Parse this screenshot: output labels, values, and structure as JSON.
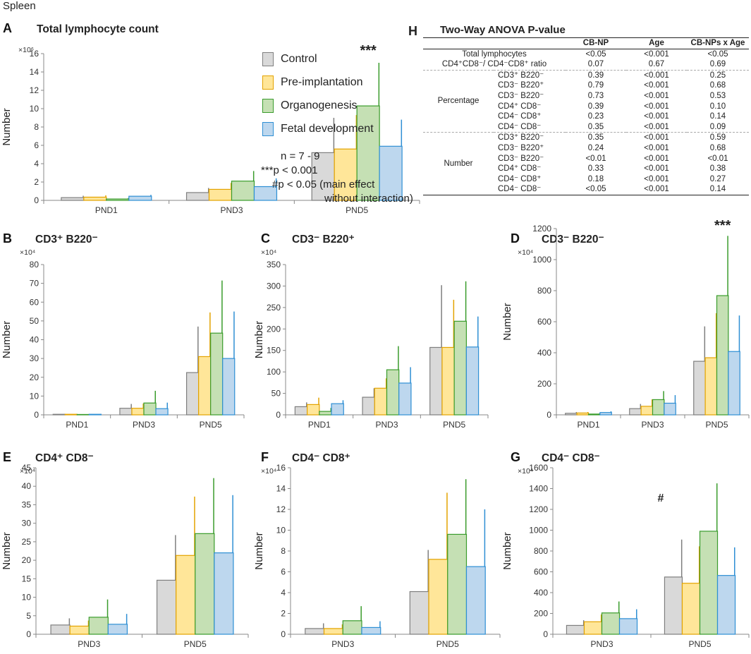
{
  "figure_label": "Spleen",
  "legend": {
    "items": [
      {
        "label": "Control",
        "fill": "#d9d9d9",
        "stroke": "#7f7f7f"
      },
      {
        "label": "Pre-implantation",
        "fill": "#ffe699",
        "stroke": "#e3a300"
      },
      {
        "label": "Organogenesis",
        "fill": "#c5e0b4",
        "stroke": "#3a9c2c"
      },
      {
        "label": "Fetal development",
        "fill": "#bdd7ee",
        "stroke": "#2e8fd4"
      }
    ],
    "notes": [
      "n = 7 - 9",
      "***p < 0.001",
      "#p < 0.05 (main effect",
      "without interaction)"
    ]
  },
  "chart_data": [
    {
      "id": "A",
      "panel_letter": "A",
      "type": "bar",
      "title": "Total lymphocyte count",
      "multiplier": "×10⁶",
      "ylabel": "Number",
      "categories": [
        "PND1",
        "PND3",
        "PND5"
      ],
      "ylim": [
        0,
        16
      ],
      "yticks": [
        0,
        2,
        4,
        6,
        8,
        10,
        12,
        14,
        16
      ],
      "series": [
        {
          "name": "Control",
          "values": [
            0.3,
            0.85,
            5.2
          ],
          "errors": [
            0.2,
            0.5,
            3.8
          ]
        },
        {
          "name": "Pre-implantation",
          "values": [
            0.35,
            1.2,
            5.6
          ],
          "errors": [
            0.2,
            0.7,
            3.7
          ]
        },
        {
          "name": "Organogenesis",
          "values": [
            0.15,
            2.1,
            10.3
          ],
          "errors": [
            0.1,
            1.1,
            4.7
          ]
        },
        {
          "name": "Fetal development",
          "values": [
            0.45,
            1.5,
            5.9
          ],
          "errors": [
            0.15,
            0.9,
            2.9
          ]
        }
      ],
      "annotation": {
        "text": "***",
        "category": "PND5"
      }
    },
    {
      "id": "B",
      "panel_letter": "B",
      "type": "bar",
      "title": "CD3⁺ B220⁻",
      "multiplier": "×10⁴",
      "ylabel": "Number",
      "categories": [
        "PND1",
        "PND3",
        "PND5"
      ],
      "ylim": [
        0,
        80
      ],
      "yticks": [
        0,
        10,
        20,
        30,
        40,
        50,
        60,
        70,
        80
      ],
      "series": [
        {
          "name": "Control",
          "values": [
            0.3,
            3.5,
            22.5
          ],
          "errors": [
            0.1,
            2.3,
            24.5
          ]
        },
        {
          "name": "Pre-implantation",
          "values": [
            0.3,
            3.5,
            31
          ],
          "errors": [
            0.1,
            2.5,
            23.5
          ]
        },
        {
          "name": "Organogenesis",
          "values": [
            0.2,
            6.3,
            43.5
          ],
          "errors": [
            0.1,
            6.5,
            28
          ]
        },
        {
          "name": "Fetal development",
          "values": [
            0.3,
            3.3,
            30
          ],
          "errors": [
            0.1,
            3.2,
            25
          ]
        }
      ]
    },
    {
      "id": "C",
      "panel_letter": "C",
      "type": "bar",
      "title": "CD3⁻ B220⁺",
      "multiplier": "×10⁴",
      "ylabel": "Number",
      "categories": [
        "PND1",
        "PND3",
        "PND5"
      ],
      "ylim": [
        0,
        350
      ],
      "yticks": [
        0,
        50,
        100,
        150,
        200,
        250,
        300,
        350
      ],
      "series": [
        {
          "name": "Control",
          "values": [
            19,
            41,
            157
          ],
          "errors": [
            10,
            21,
            145
          ]
        },
        {
          "name": "Pre-implantation",
          "values": [
            24,
            62,
            157
          ],
          "errors": [
            16,
            23,
            111
          ]
        },
        {
          "name": "Organogenesis",
          "values": [
            8,
            105,
            218
          ],
          "errors": [
            8,
            55,
            93
          ]
        },
        {
          "name": "Fetal development",
          "values": [
            26,
            74,
            158
          ],
          "errors": [
            8,
            37,
            71
          ]
        }
      ]
    },
    {
      "id": "D",
      "panel_letter": "D",
      "type": "bar",
      "title": "CD3⁻ B220⁻",
      "multiplier": "×10⁴",
      "ylabel": "Number",
      "categories": [
        "PND1",
        "PND3",
        "PND5"
      ],
      "ylim": [
        0,
        1200
      ],
      "yticks": [
        0,
        200,
        400,
        600,
        800,
        1000,
        1200
      ],
      "series": [
        {
          "name": "Control",
          "values": [
            10,
            40,
            345
          ],
          "errors": [
            8,
            30,
            225
          ]
        },
        {
          "name": "Pre-implantation",
          "values": [
            12,
            55,
            368
          ],
          "errors": [
            6,
            45,
            287
          ]
        },
        {
          "name": "Organogenesis",
          "values": [
            5,
            98,
            768
          ],
          "errors": [
            4,
            55,
            385
          ]
        },
        {
          "name": "Fetal development",
          "values": [
            15,
            75,
            408
          ],
          "errors": [
            8,
            52,
            232
          ]
        }
      ],
      "annotation": {
        "text": "***",
        "category": "PND5"
      }
    },
    {
      "id": "E",
      "panel_letter": "E",
      "type": "bar",
      "title": "CD4⁺ CD8⁻",
      "multiplier": "×10⁴",
      "ylabel": "Number",
      "categories": [
        "PND3",
        "PND5"
      ],
      "ylim": [
        0,
        45
      ],
      "yticks": [
        0,
        5,
        10,
        15,
        20,
        25,
        30,
        35,
        40,
        45
      ],
      "series": [
        {
          "name": "Control",
          "values": [
            2.5,
            14.6
          ],
          "errors": [
            1.8,
            12.2
          ]
        },
        {
          "name": "Pre-implantation",
          "values": [
            2.2,
            21.3
          ],
          "errors": [
            1.5,
            15.9
          ]
        },
        {
          "name": "Organogenesis",
          "values": [
            4.6,
            27.2
          ],
          "errors": [
            4.8,
            15
          ]
        },
        {
          "name": "Fetal development",
          "values": [
            2.7,
            22
          ],
          "errors": [
            2.8,
            15.6
          ]
        }
      ]
    },
    {
      "id": "F",
      "panel_letter": "F",
      "type": "bar",
      "title": "CD4⁻ CD8⁺",
      "multiplier": "×10⁴",
      "ylabel": "Number",
      "categories": [
        "PND3",
        "PND5"
      ],
      "ylim": [
        0,
        16
      ],
      "yticks": [
        0,
        2,
        4,
        6,
        8,
        10,
        12,
        14,
        16
      ],
      "series": [
        {
          "name": "Control",
          "values": [
            0.55,
            4.1
          ],
          "errors": [
            0.5,
            4.0
          ]
        },
        {
          "name": "Pre-implantation",
          "values": [
            0.55,
            7.2
          ],
          "errors": [
            0.4,
            6.4
          ]
        },
        {
          "name": "Organogenesis",
          "values": [
            1.3,
            9.6
          ],
          "errors": [
            1.4,
            5.3
          ]
        },
        {
          "name": "Fetal development",
          "values": [
            0.65,
            6.5
          ],
          "errors": [
            0.6,
            5.5
          ]
        }
      ]
    },
    {
      "id": "G",
      "panel_letter": "G",
      "type": "bar",
      "title": "CD4⁻ CD8⁻",
      "multiplier": "×10⁴",
      "ylabel": "Number",
      "categories": [
        "PND3",
        "PND5"
      ],
      "ylim": [
        0,
        1600
      ],
      "yticks": [
        0,
        200,
        400,
        600,
        800,
        1000,
        1200,
        1400,
        1600
      ],
      "series": [
        {
          "name": "Control",
          "values": [
            85,
            550
          ],
          "errors": [
            50,
            360
          ]
        },
        {
          "name": "Pre-implantation",
          "values": [
            120,
            490
          ],
          "errors": [
            70,
            355
          ]
        },
        {
          "name": "Organogenesis",
          "values": [
            205,
            990
          ],
          "errors": [
            110,
            460
          ]
        },
        {
          "name": "Fetal development",
          "values": [
            150,
            565
          ],
          "errors": [
            90,
            270
          ]
        }
      ],
      "annotation": {
        "text": "#",
        "category": "mid"
      }
    }
  ],
  "anova": {
    "panel_letter": "H",
    "title": "Two-Way ANOVA P-value",
    "columns": [
      "CB-NP",
      "Age",
      "CB-NPs x Age"
    ],
    "top_rows": [
      {
        "label": "Total lymphocytes",
        "values": [
          "<0.05",
          "<0.001",
          "<0.05"
        ]
      },
      {
        "label": "CD4⁺CD8⁻/ CD4⁻CD8⁺ ratio",
        "values": [
          "0.07",
          "0.67",
          "0.69"
        ]
      }
    ],
    "groups": [
      {
        "name": "Percentage",
        "rows": [
          {
            "label": "CD3⁺ B220⁻",
            "values": [
              "0.39",
              "<0.001",
              "0.25"
            ]
          },
          {
            "label": "CD3⁻ B220⁺",
            "values": [
              "0.79",
              "<0.001",
              "0.68"
            ]
          },
          {
            "label": "CD3⁻ B220⁻",
            "values": [
              "0.73",
              "<0.001",
              "0.53"
            ]
          },
          {
            "label": "CD4⁺ CD8⁻",
            "values": [
              "0.39",
              "<0.001",
              "0.10"
            ]
          },
          {
            "label": "CD4⁻ CD8⁺",
            "values": [
              "0.23",
              "<0.001",
              "0.14"
            ]
          },
          {
            "label": "CD4⁻ CD8⁻",
            "values": [
              "0.35",
              "<0.001",
              "0.09"
            ]
          }
        ]
      },
      {
        "name": "Number",
        "rows": [
          {
            "label": "CD3⁺ B220⁻",
            "values": [
              "0.35",
              "<0.001",
              "0.59"
            ]
          },
          {
            "label": "CD3⁻ B220⁺",
            "values": [
              "0.24",
              "<0.001",
              "0.68"
            ]
          },
          {
            "label": "CD3⁻ B220⁻",
            "values": [
              "<0.01",
              "<0.001",
              "<0.01"
            ]
          },
          {
            "label": "CD4⁺ CD8⁻",
            "values": [
              "0.33",
              "<0.001",
              "0.38"
            ]
          },
          {
            "label": "CD4⁻ CD8⁺",
            "values": [
              "0.18",
              "<0.001",
              "0.27"
            ]
          },
          {
            "label": "CD4⁻ CD8⁻",
            "values": [
              "<0.05",
              "<0.001",
              "0.14"
            ]
          }
        ]
      }
    ]
  }
}
